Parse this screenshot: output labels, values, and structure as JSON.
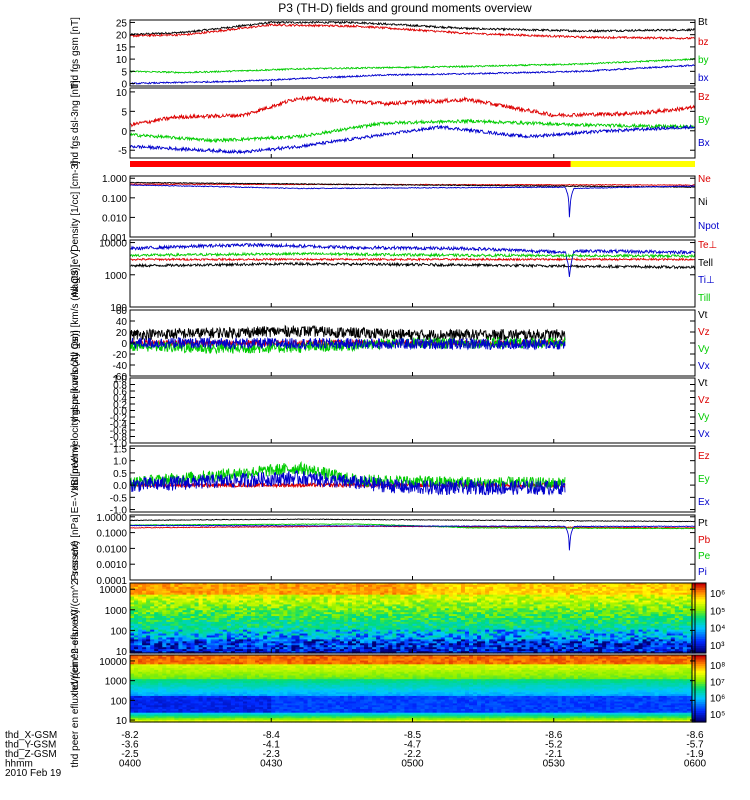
{
  "title": "P3 (TH-D) fields and ground moments overview",
  "chart_data": [
    {
      "type": "line",
      "ylabel": "thd fgs gsm [nT]",
      "ylim": [
        -1,
        26
      ],
      "yticks": [
        0,
        5,
        10,
        15,
        20,
        25
      ],
      "yticklabels": [
        "0",
        "5",
        "10",
        "15",
        "20",
        "25"
      ],
      "series": [
        {
          "name": "Bt",
          "color": "#000000",
          "shape": [
            [
              0,
              20
            ],
            [
              0.1,
              21
            ],
            [
              0.25,
              25
            ],
            [
              0.4,
              25
            ],
            [
              0.6,
              22.5
            ],
            [
              0.8,
              21.5
            ],
            [
              1,
              22
            ]
          ],
          "noise": 0.4
        },
        {
          "name": "bz",
          "color": "#dd0000",
          "shape": [
            [
              0,
              19.5
            ],
            [
              0.1,
              20
            ],
            [
              0.25,
              24
            ],
            [
              0.4,
              23.5
            ],
            [
              0.6,
              20.5
            ],
            [
              0.8,
              19
            ],
            [
              1,
              18.5
            ]
          ],
          "noise": 0.4
        },
        {
          "name": "by",
          "color": "#00cc00",
          "shape": [
            [
              0,
              5
            ],
            [
              0.1,
              4.5
            ],
            [
              0.3,
              6
            ],
            [
              0.6,
              7
            ],
            [
              0.8,
              8
            ],
            [
              1,
              10
            ]
          ],
          "noise": 0.3
        },
        {
          "name": "bx",
          "color": "#0000cc",
          "shape": [
            [
              0,
              0
            ],
            [
              0.2,
              1
            ],
            [
              0.45,
              3.5
            ],
            [
              0.6,
              4
            ],
            [
              0.8,
              5
            ],
            [
              1,
              7.5
            ]
          ],
          "noise": 0.3
        }
      ]
    },
    {
      "type": "line",
      "ylabel": "thd fgs dsl-3ng [nT]",
      "ylim": [
        -7,
        11
      ],
      "yticks": [
        -5,
        0,
        5,
        10
      ],
      "yticklabels": [
        "-5",
        "0",
        "5",
        "10"
      ],
      "series": [
        {
          "name": "Bz",
          "color": "#dd0000",
          "shape": [
            [
              0,
              1.5
            ],
            [
              0.08,
              3.5
            ],
            [
              0.2,
              4
            ],
            [
              0.3,
              8.5
            ],
            [
              0.45,
              7
            ],
            [
              0.6,
              8
            ],
            [
              0.75,
              4
            ],
            [
              0.9,
              4.5
            ],
            [
              1,
              6
            ]
          ],
          "noise": 0.5
        },
        {
          "name": "By",
          "color": "#00cc00",
          "shape": [
            [
              0,
              -1
            ],
            [
              0.15,
              -2.5
            ],
            [
              0.3,
              -1.5
            ],
            [
              0.45,
              2
            ],
            [
              0.6,
              2.5
            ],
            [
              0.8,
              1.5
            ],
            [
              1,
              1
            ]
          ],
          "noise": 0.4
        },
        {
          "name": "Bx",
          "color": "#0000cc",
          "shape": [
            [
              0,
              -4
            ],
            [
              0.2,
              -5.5
            ],
            [
              0.3,
              -4
            ],
            [
              0.45,
              -1
            ],
            [
              0.55,
              1
            ],
            [
              0.7,
              -1.5
            ],
            [
              0.85,
              0
            ],
            [
              1,
              1
            ]
          ],
          "noise": 0.4
        }
      ]
    },
    {
      "type": "line",
      "ylabel": "Density [1/cc] [cm-3]",
      "log": true,
      "ylim": [
        0.001,
        1.3
      ],
      "yticks": [
        0.001,
        0.01,
        0.1,
        1
      ],
      "yticklabels": [
        "0.001",
        "0.010",
        "0.100",
        "1.000"
      ],
      "series": [
        {
          "name": "Ne",
          "color": "#dd0000",
          "shape": [
            [
              0,
              0.5
            ],
            [
              1,
              0.45
            ]
          ],
          "noise": 0.02
        },
        {
          "name": "Ni",
          "color": "#000000",
          "shape": [
            [
              0,
              0.6
            ],
            [
              0.5,
              0.45
            ],
            [
              1,
              0.35
            ]
          ],
          "noise": 0.02
        },
        {
          "name": "Npot",
          "color": "#0000cc",
          "shape": [
            [
              0,
              0.45
            ],
            [
              0.3,
              0.3
            ],
            [
              0.77,
              0.35
            ],
            [
              0.778,
              0.001
            ],
            [
              0.786,
              0.3
            ],
            [
              1,
              0.4
            ]
          ],
          "noise": 0.02
        }
      ]
    },
    {
      "type": "line",
      "ylabel": "magt3 [eV]",
      "log": true,
      "ylim": [
        100,
        12000
      ],
      "yticks": [
        100,
        1000,
        10000
      ],
      "yticklabels": [
        "100",
        "1000",
        "10000"
      ],
      "series": [
        {
          "name": "Te⊥",
          "color": "#dd0000",
          "shape": [
            [
              0,
              3000
            ],
            [
              1,
              3000
            ]
          ],
          "noise": 0.03
        },
        {
          "name": "Tell",
          "color": "#000000",
          "shape": [
            [
              0,
              1900
            ],
            [
              0.3,
              2200
            ],
            [
              0.6,
              2000
            ],
            [
              1,
              1700
            ]
          ],
          "noise": 0.04
        },
        {
          "name": "Ti⊥",
          "color": "#0000cc",
          "shape": [
            [
              0,
              6500
            ],
            [
              0.2,
              8500
            ],
            [
              0.4,
              7000
            ],
            [
              0.6,
              6500
            ],
            [
              0.77,
              5000
            ],
            [
              0.778,
              700
            ],
            [
              0.786,
              5500
            ],
            [
              1,
              5000
            ]
          ],
          "noise": 0.05
        },
        {
          "name": "Till",
          "color": "#00cc00",
          "shape": [
            [
              0,
              4000
            ],
            [
              0.3,
              4500
            ],
            [
              0.6,
              4000
            ],
            [
              1,
              3800
            ]
          ],
          "noise": 0.04
        }
      ]
    },
    {
      "type": "line",
      "ylabel": "thd peir velocity gsm [km/s (All Qs)]",
      "ylim": [
        -60,
        60
      ],
      "yticks": [
        -60,
        -40,
        -20,
        0,
        20,
        40,
        60
      ],
      "yticklabels": [
        "-60",
        "-40",
        "-20",
        "0",
        "20",
        "40",
        "60"
      ],
      "xfrac": 0.77,
      "series": [
        {
          "name": "Vt",
          "color": "#000000",
          "shape": [
            [
              0,
              15
            ],
            [
              0.3,
              22
            ],
            [
              0.5,
              15
            ],
            [
              1,
              15
            ]
          ],
          "noise": 10
        },
        {
          "name": "Vz",
          "color": "#dd0000",
          "shape": [
            [
              0,
              0
            ],
            [
              1,
              0
            ]
          ],
          "noise": 5
        },
        {
          "name": "Vy",
          "color": "#00cc00",
          "shape": [
            [
              0,
              -5
            ],
            [
              0.15,
              -10
            ],
            [
              0.3,
              -8
            ],
            [
              0.5,
              0
            ],
            [
              1,
              0
            ]
          ],
          "noise": 10
        },
        {
          "name": "Vx",
          "color": "#0000cc",
          "shape": [
            [
              0,
              0
            ],
            [
              1,
              -3
            ]
          ],
          "noise": 10
        }
      ]
    },
    {
      "type": "line",
      "ylabel": "thd peer velocity gsm [km/s (All Qs)]",
      "ylim": [
        -1,
        1
      ],
      "yticks": [
        -1,
        -0.8,
        -0.6,
        -0.4,
        -0.2,
        0,
        0.2,
        0.4,
        0.6,
        0.8,
        1
      ],
      "yticklabels": [
        "-1.0",
        "-0.8",
        "-0.6",
        "-0.4",
        "-0.2",
        "0.0",
        "0.2",
        "0.4",
        "0.6",
        "0.8",
        "1.0"
      ],
      "legend": [
        "Vt",
        "Vz",
        "Vy",
        "Vx"
      ],
      "series": []
    },
    {
      "type": "line",
      "ylabel": "E=-VxB [mV/m]",
      "ylim": [
        -1.1,
        1.6
      ],
      "yticks": [
        -1,
        -0.5,
        0,
        0.5,
        1,
        1.5
      ],
      "yticklabels": [
        "-1.0",
        "-0.5",
        "0.0",
        "0.5",
        "1.0",
        "1.5"
      ],
      "xfrac": 0.77,
      "series": [
        {
          "name": "Ez",
          "color": "#dd0000",
          "shape": [
            [
              0,
              0
            ],
            [
              1,
              0
            ]
          ],
          "noise": 0.08
        },
        {
          "name": "Ey",
          "color": "#00cc00",
          "shape": [
            [
              0,
              0.1
            ],
            [
              0.15,
              0.4
            ],
            [
              0.3,
              0.7
            ],
            [
              0.4,
              0.2
            ],
            [
              0.6,
              0.1
            ],
            [
              1,
              0.05
            ]
          ],
          "noise": 0.25
        },
        {
          "name": "Ex",
          "color": "#0000cc",
          "shape": [
            [
              0,
              0
            ],
            [
              0.2,
              0.2
            ],
            [
              0.3,
              0.3
            ],
            [
              0.5,
              -0.1
            ],
            [
              1,
              -0.1
            ]
          ],
          "noise": 0.3
        }
      ]
    },
    {
      "type": "line",
      "ylabel": "Pressure [nPa]",
      "log": true,
      "ylim": [
        0.0001,
        1.3
      ],
      "yticks": [
        0.0001,
        0.001,
        0.01,
        0.1,
        1
      ],
      "yticklabels": [
        "0.0001",
        "0.0010",
        "0.0100",
        "0.1000",
        "1.0000"
      ],
      "series": [
        {
          "name": "Pt",
          "color": "#000000",
          "shape": [
            [
              0,
              0.6
            ],
            [
              0.3,
              0.7
            ],
            [
              1,
              0.5
            ]
          ],
          "noise": 0.02
        },
        {
          "name": "Pb",
          "color": "#dd0000",
          "shape": [
            [
              0,
              0.2
            ],
            [
              0.4,
              0.25
            ],
            [
              1,
              0.2
            ]
          ],
          "noise": 0.02
        },
        {
          "name": "Pe",
          "color": "#00cc00",
          "shape": [
            [
              0,
              0.3
            ],
            [
              0.4,
              0.35
            ],
            [
              0.6,
              0.2
            ],
            [
              1,
              0.18
            ]
          ],
          "noise": 0.02
        },
        {
          "name": "Pi",
          "color": "#0000cc",
          "shape": [
            [
              0,
              0.28
            ],
            [
              0.77,
              0.25
            ],
            [
              0.778,
              0.0008
            ],
            [
              0.786,
              0.25
            ],
            [
              1,
              0.25
            ]
          ],
          "noise": 0.02
        }
      ]
    },
    {
      "type": "heatmap",
      "ylabel": "thd peir en eflux eV/(cm^2-s-sr-eV)",
      "log": true,
      "ylim": [
        8,
        20000
      ],
      "yticks": [
        10,
        100,
        1000,
        10000
      ],
      "yticklabels": [
        "10",
        "100",
        "1000",
        "10000"
      ],
      "colorbar": {
        "ticklabels": [
          "10⁶",
          "10⁵",
          "10⁴",
          "10³"
        ],
        "range": [
          1000,
          1000000
        ]
      },
      "profile": "ion"
    },
    {
      "type": "heatmap",
      "ylabel": "thd peer en eflux eV/(cm^2-s-sr-eV)",
      "log": true,
      "ylim": [
        8,
        20000
      ],
      "yticks": [
        10,
        100,
        1000,
        10000
      ],
      "yticklabels": [
        "10",
        "100",
        "1000",
        "10000"
      ],
      "colorbar": {
        "ticklabels": [
          "10⁸",
          "10⁷",
          "10⁶",
          "10⁵"
        ],
        "range": [
          100000,
          100000000
        ]
      },
      "profile": "electron"
    }
  ],
  "mode_bar": {
    "segments": [
      {
        "start": 0,
        "end": 0.78,
        "color": "#ff0000"
      },
      {
        "start": 0.78,
        "end": 1,
        "color": "#ffff00"
      }
    ]
  },
  "x_axis": {
    "ticks": [
      0,
      0.25,
      0.5,
      0.75,
      1
    ],
    "rows": [
      {
        "label": "thd_X-GSM",
        "values": [
          "-8.2",
          "-8.4",
          "-8.5",
          "-8.6",
          "-8.6"
        ]
      },
      {
        "label": "thd_Y-GSM",
        "values": [
          "-3.6",
          "-4.1",
          "-4.7",
          "-5.2",
          "-5.7"
        ]
      },
      {
        "label": "thd_Z-GSM",
        "values": [
          "-2.5",
          "-2.3",
          "-2.2",
          "-2.1",
          "-1.9"
        ]
      },
      {
        "label": "hhmm",
        "values": [
          "0400",
          "0430",
          "0500",
          "0530",
          "0600"
        ]
      }
    ],
    "date": "2010 Feb 19"
  }
}
